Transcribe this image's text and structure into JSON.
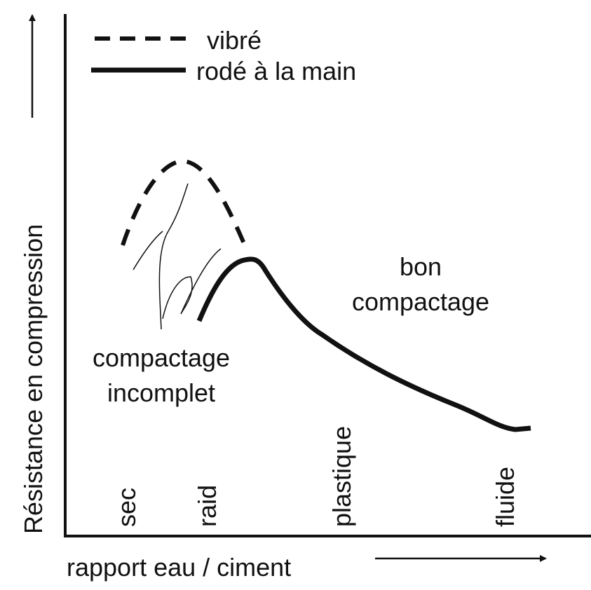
{
  "legend": {
    "items": [
      {
        "label": "vibré"
      },
      {
        "label": "rodé à la main"
      }
    ]
  },
  "axes": {
    "y_label": "Résistance en compression",
    "x_label": "rapport eau / ciment"
  },
  "annotations": {
    "good": [
      "bon",
      "compactage"
    ],
    "incomplete": [
      "compactage",
      "incomplet"
    ]
  },
  "workability": [
    "sec",
    "raid",
    "plastique",
    "fluide"
  ]
}
